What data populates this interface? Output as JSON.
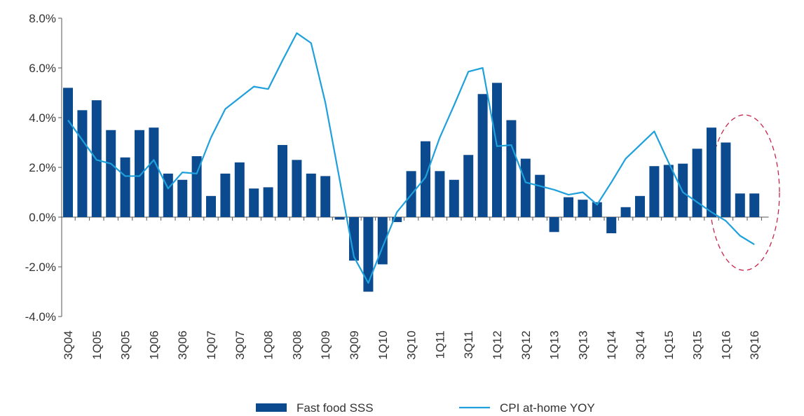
{
  "chart_data": {
    "type": "bar-line",
    "categories": [
      "3Q04",
      null,
      "1Q05",
      null,
      "3Q05",
      null,
      "1Q06",
      null,
      "3Q06",
      null,
      "1Q07",
      null,
      "3Q07",
      null,
      "1Q08",
      null,
      "3Q08",
      null,
      "1Q09",
      null,
      "3Q09",
      null,
      "1Q10",
      null,
      "3Q10",
      null,
      "1Q11",
      null,
      "3Q11",
      null,
      "1Q12",
      null,
      "3Q12",
      null,
      "1Q13",
      null,
      "3Q13",
      null,
      "1Q14",
      null,
      "3Q14",
      null,
      "1Q15",
      null,
      "3Q15",
      null,
      "1Q16",
      null,
      "3Q16"
    ],
    "series": [
      {
        "name": "Fast food SSS",
        "type": "bar",
        "color": "#0b4a8f",
        "values": [
          5.2,
          4.3,
          4.7,
          3.5,
          2.4,
          3.5,
          3.6,
          1.75,
          1.5,
          2.45,
          0.85,
          1.75,
          2.2,
          1.15,
          1.2,
          2.9,
          2.3,
          1.75,
          1.65,
          -0.1,
          -1.75,
          -3.0,
          -1.9,
          -0.2,
          1.85,
          3.05,
          1.85,
          1.5,
          2.5,
          4.95,
          5.4,
          3.9,
          2.35,
          1.7,
          -0.6,
          0.8,
          0.7,
          0.6,
          -0.65,
          0.4,
          0.85,
          2.05,
          2.1,
          2.15,
          2.75,
          3.6,
          3.0,
          0.95,
          0.95
        ]
      },
      {
        "name": "CPI at-home YOY",
        "type": "line",
        "color": "#1ea0dc",
        "values": [
          3.9,
          3.1,
          2.3,
          2.15,
          1.65,
          1.65,
          2.3,
          1.15,
          1.8,
          1.75,
          3.2,
          4.35,
          4.8,
          5.25,
          5.15,
          6.3,
          7.4,
          7.0,
          4.6,
          1.5,
          -1.6,
          -2.65,
          -1.2,
          0.2,
          0.9,
          1.6,
          3.2,
          4.5,
          5.85,
          6.0,
          2.85,
          2.9,
          1.4,
          1.25,
          1.1,
          0.9,
          1.0,
          0.5,
          1.4,
          2.35,
          2.9,
          3.45,
          2.2,
          1.0,
          0.6,
          0.2,
          -0.15,
          -0.75,
          -1.1
        ]
      }
    ],
    "ylim": [
      -4,
      8
    ],
    "yticks": [
      {
        "value": -4,
        "label": "-4.0%"
      },
      {
        "value": -2,
        "label": "-2.0%"
      },
      {
        "value": 0,
        "label": "0.0%"
      },
      {
        "value": 2,
        "label": "2.0%"
      },
      {
        "value": 4,
        "label": "4.0%"
      },
      {
        "value": 6,
        "label": "6.0%"
      },
      {
        "value": 8,
        "label": "8.0%"
      }
    ],
    "legend": "bottom"
  }
}
